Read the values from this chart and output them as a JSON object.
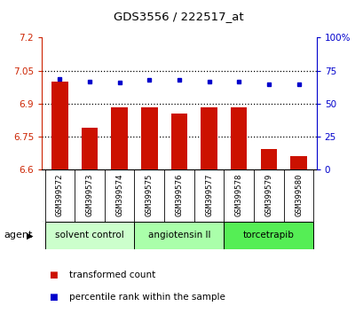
{
  "title": "GDS3556 / 222517_at",
  "samples": [
    "GSM399572",
    "GSM399573",
    "GSM399574",
    "GSM399575",
    "GSM399576",
    "GSM399577",
    "GSM399578",
    "GSM399579",
    "GSM399580"
  ],
  "transformed_count": [
    7.0,
    6.79,
    6.885,
    6.885,
    6.855,
    6.885,
    6.885,
    6.695,
    6.66
  ],
  "percentile_rank": [
    69,
    67,
    66,
    68,
    68,
    67,
    67,
    65,
    65
  ],
  "ylim_left": [
    6.6,
    7.2
  ],
  "ylim_right": [
    0,
    100
  ],
  "yticks_left": [
    6.6,
    6.75,
    6.9,
    7.05,
    7.2
  ],
  "yticks_right": [
    0,
    25,
    50,
    75,
    100
  ],
  "ytick_labels_left": [
    "6.6",
    "6.75",
    "6.9",
    "7.05",
    "7.2"
  ],
  "ytick_labels_right": [
    "0",
    "25",
    "50",
    "75",
    "100%"
  ],
  "hlines": [
    6.75,
    6.9,
    7.05
  ],
  "bar_color": "#cc1100",
  "dot_color": "#0000cc",
  "agent_groups": [
    {
      "label": "solvent control",
      "start": 0,
      "end": 3,
      "color": "#ccffcc"
    },
    {
      "label": "angiotensin II",
      "start": 3,
      "end": 6,
      "color": "#aaffaa"
    },
    {
      "label": "torcetrapib",
      "start": 6,
      "end": 9,
      "color": "#55ee55"
    }
  ],
  "agent_label": "agent",
  "legend_red": "transformed count",
  "legend_blue": "percentile rank within the sample",
  "left_tick_color": "#cc2200",
  "right_tick_color": "#0000cc",
  "grid_color": "#000000",
  "bar_bottom": 6.6,
  "sample_box_color": "#cccccc"
}
